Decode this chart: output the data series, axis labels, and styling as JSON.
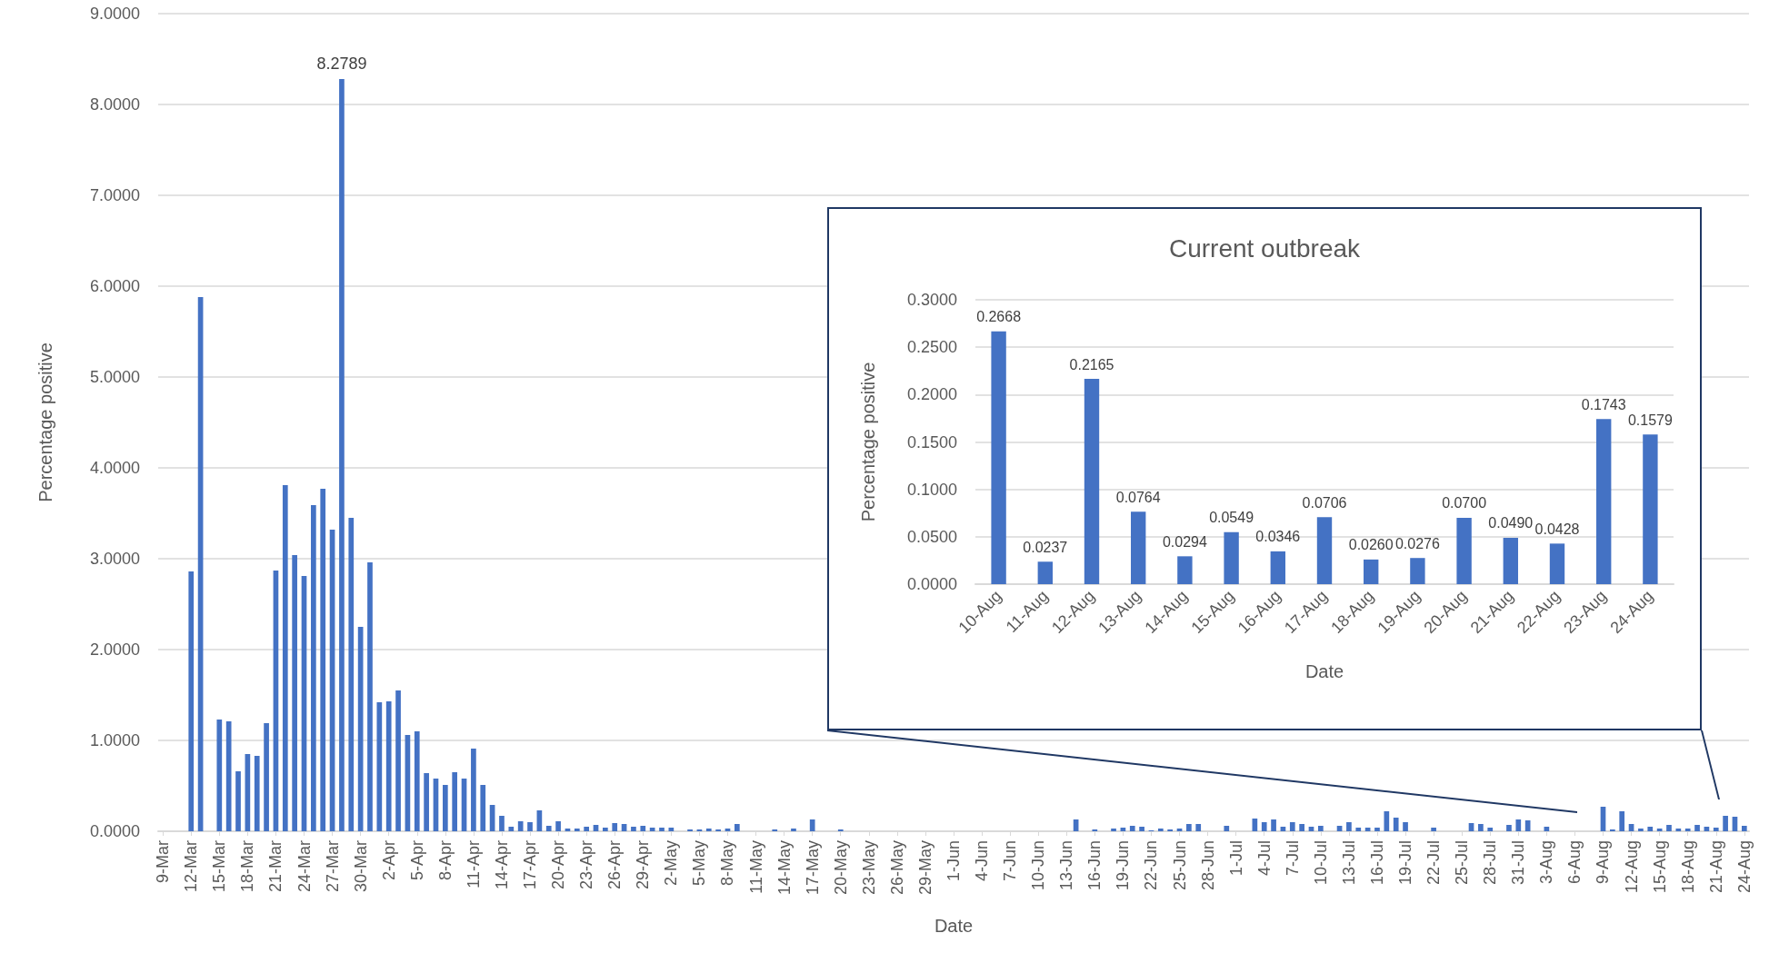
{
  "chart_data": [
    {
      "type": "bar",
      "xlabel": "Date",
      "ylabel": "Percentage positive",
      "color": "#4472c4",
      "grid": "y",
      "ylim": [
        0,
        9
      ],
      "yticks": [
        {
          "value": 0,
          "label": "0.0000"
        },
        {
          "value": 1,
          "label": "1.0000"
        },
        {
          "value": 2,
          "label": "2.0000"
        },
        {
          "value": 3,
          "label": "3.0000"
        },
        {
          "value": 4,
          "label": "4.0000"
        },
        {
          "value": 5,
          "label": "5.0000"
        },
        {
          "value": 6,
          "label": "6.0000"
        },
        {
          "value": 7,
          "label": "7.0000"
        },
        {
          "value": 8,
          "label": "8.0000"
        },
        {
          "value": 9,
          "label": "9.0000"
        }
      ],
      "categories": [
        "9-Mar",
        null,
        null,
        "12-Mar",
        null,
        null,
        "15-Mar",
        null,
        null,
        "18-Mar",
        null,
        null,
        "21-Mar",
        null,
        null,
        "24-Mar",
        null,
        null,
        "27-Mar",
        null,
        null,
        "30-Mar",
        null,
        null,
        "2-Apr",
        null,
        null,
        "5-Apr",
        null,
        null,
        "8-Apr",
        null,
        null,
        "11-Apr",
        null,
        null,
        "14-Apr",
        null,
        null,
        "17-Apr",
        null,
        null,
        "20-Apr",
        null,
        null,
        "23-Apr",
        null,
        null,
        "26-Apr",
        null,
        null,
        "29-Apr",
        null,
        null,
        "2-May",
        null,
        null,
        "5-May",
        null,
        null,
        "8-May",
        null,
        null,
        "11-May",
        null,
        null,
        "14-May",
        null,
        null,
        "17-May",
        null,
        null,
        "20-May",
        null,
        null,
        "23-May",
        null,
        null,
        "26-May",
        null,
        null,
        "29-May",
        null,
        null,
        "1-Jun",
        null,
        null,
        "4-Jun",
        null,
        null,
        "7-Jun",
        null,
        null,
        "10-Jun",
        null,
        null,
        "13-Jun",
        null,
        null,
        "16-Jun",
        null,
        null,
        "19-Jun",
        null,
        null,
        "22-Jun",
        null,
        null,
        "25-Jun",
        null,
        null,
        "28-Jun",
        null,
        null,
        "1-Jul",
        null,
        null,
        "4-Jul",
        null,
        null,
        "7-Jul",
        null,
        null,
        "10-Jul",
        null,
        null,
        "13-Jul",
        null,
        null,
        "16-Jul",
        null,
        null,
        "19-Jul",
        null,
        null,
        "22-Jul",
        null,
        null,
        "25-Jul",
        null,
        null,
        "28-Jul",
        null,
        null,
        "31-Jul",
        null,
        null,
        "3-Aug",
        null,
        null,
        "6-Aug",
        null,
        null,
        "9-Aug",
        null,
        null,
        "12-Aug",
        null,
        null,
        "15-Aug",
        null,
        null,
        "18-Aug",
        null,
        null,
        "21-Aug",
        null,
        null,
        "24-Aug"
      ],
      "values": [
        null,
        null,
        null,
        2.86,
        5.88,
        null,
        1.23,
        1.21,
        0.66,
        0.85,
        0.83,
        1.19,
        2.87,
        3.81,
        3.04,
        2.81,
        3.59,
        3.77,
        3.32,
        8.2789,
        3.45,
        2.25,
        2.96,
        1.42,
        1.43,
        1.55,
        1.06,
        1.1,
        0.64,
        0.58,
        0.51,
        0.65,
        0.58,
        0.91,
        0.51,
        0.29,
        0.17,
        0.05,
        0.11,
        0.1,
        0.23,
        0.06,
        0.11,
        0.03,
        0.03,
        0.05,
        0.07,
        0.04,
        0.09,
        0.08,
        0.05,
        0.06,
        0.04,
        0.04,
        0.04,
        null,
        0.02,
        0.02,
        0.03,
        0.02,
        0.03,
        0.08,
        null,
        null,
        null,
        0.02,
        null,
        0.03,
        null,
        0.13,
        null,
        null,
        0.02,
        null,
        null,
        null,
        null,
        null,
        null,
        null,
        null,
        null,
        null,
        null,
        null,
        null,
        null,
        null,
        null,
        null,
        null,
        null,
        null,
        null,
        null,
        null,
        null,
        0.13,
        null,
        0.02,
        null,
        0.03,
        0.04,
        0.06,
        0.05,
        0.01,
        0.03,
        0.02,
        0.03,
        0.08,
        0.08,
        null,
        null,
        0.06,
        null,
        null,
        0.14,
        0.1,
        0.13,
        0.05,
        0.1,
        0.08,
        0.05,
        0.06,
        null,
        0.06,
        0.1,
        0.04,
        0.04,
        0.04,
        0.22,
        0.15,
        0.1,
        null,
        null,
        0.04,
        null,
        null,
        null,
        0.09,
        0.08,
        0.04,
        null,
        0.07,
        0.13,
        0.12,
        null,
        0.05,
        null,
        null,
        null,
        null,
        null,
        0.27,
        0.02,
        0.22,
        0.08,
        0.03,
        0.05,
        0.03,
        0.07,
        0.03,
        0.03,
        0.07,
        0.05,
        0.04,
        0.17,
        0.16,
        0.06
      ],
      "value_labels": [
        null,
        null,
        null,
        null,
        null,
        null,
        null,
        null,
        null,
        null,
        null,
        null,
        null,
        null,
        null,
        null,
        null,
        null,
        null,
        "8.2789",
        null,
        null,
        null,
        null,
        null,
        null,
        null,
        null,
        null,
        null,
        null,
        null,
        null,
        null,
        null,
        null,
        null,
        null,
        null,
        null,
        null,
        null,
        null,
        null,
        null,
        null,
        null,
        null,
        null,
        null,
        null,
        null,
        null,
        null,
        null,
        null,
        null,
        null,
        null,
        null,
        null,
        null,
        null,
        null,
        null,
        null,
        null,
        null,
        null,
        null,
        null,
        null,
        null,
        null,
        null,
        null,
        null,
        null,
        null,
        null,
        null,
        null,
        null,
        null,
        null,
        null,
        null,
        null,
        null,
        null,
        null,
        null,
        null,
        null,
        null,
        null,
        null,
        null,
        null,
        null,
        null,
        null,
        null,
        null,
        null,
        null,
        null,
        null,
        null,
        null,
        null,
        null,
        null,
        null,
        null,
        null,
        null,
        null,
        null,
        null,
        null,
        null,
        null,
        null,
        null,
        null,
        null,
        null,
        null,
        null,
        null,
        null,
        null,
        null,
        null,
        null,
        null,
        null,
        null,
        null,
        null,
        null,
        null,
        null,
        null,
        null,
        null,
        null,
        null,
        null,
        null,
        null,
        null,
        null,
        null,
        null,
        null,
        null,
        null,
        null,
        null,
        null,
        null,
        null,
        null,
        null,
        null,
        null,
        null
      ]
    },
    {
      "type": "bar",
      "title": "Current outbreak",
      "xlabel": "Date",
      "ylabel": "Percentage positive",
      "color": "#4472c4",
      "grid": "y",
      "ylim": [
        0,
        0.3
      ],
      "yticks": [
        {
          "value": 0,
          "label": "0.0000"
        },
        {
          "value": 0.05,
          "label": "0.0500"
        },
        {
          "value": 0.1,
          "label": "0.1000"
        },
        {
          "value": 0.15,
          "label": "0.1500"
        },
        {
          "value": 0.2,
          "label": "0.2000"
        },
        {
          "value": 0.25,
          "label": "0.2500"
        },
        {
          "value": 0.3,
          "label": "0.3000"
        }
      ],
      "categories": [
        "10-Aug",
        "11-Aug",
        "12-Aug",
        "13-Aug",
        "14-Aug",
        "15-Aug",
        "16-Aug",
        "17-Aug",
        "18-Aug",
        "19-Aug",
        "20-Aug",
        "21-Aug",
        "22-Aug",
        "23-Aug",
        "24-Aug"
      ],
      "values": [
        0.2668,
        0.0237,
        0.2165,
        0.0764,
        0.0294,
        0.0549,
        0.0346,
        0.0706,
        0.026,
        0.0276,
        0.07,
        0.049,
        0.0428,
        0.1743,
        0.1579
      ],
      "value_labels": [
        "0.2668",
        "0.0237",
        "0.2165",
        "0.0764",
        "0.0294",
        "0.0549",
        "0.0346",
        "0.0706",
        "0.0260",
        "0.0276",
        "0.0700",
        "0.0490",
        "0.0428",
        "0.1743",
        "0.1579"
      ]
    }
  ]
}
